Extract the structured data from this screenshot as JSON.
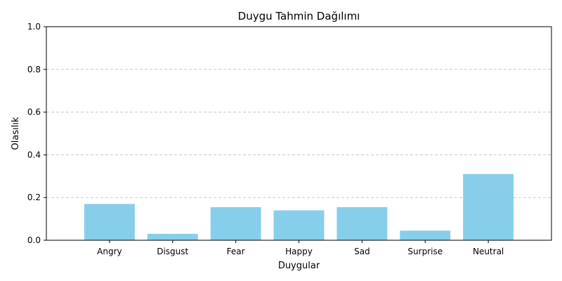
{
  "chart_data": {
    "type": "bar",
    "title": "Duygu Tahmin Dağılımı",
    "xlabel": "Duygular",
    "ylabel": "Olasılık",
    "categories": [
      "Angry",
      "Disgust",
      "Fear",
      "Happy",
      "Sad",
      "Surprise",
      "Neutral"
    ],
    "values": [
      0.17,
      0.03,
      0.155,
      0.14,
      0.155,
      0.045,
      0.31
    ],
    "ylim": [
      0,
      1.0
    ],
    "yticks": [
      "0.0",
      "0.2",
      "0.4",
      "0.6",
      "0.8",
      "1.0"
    ],
    "grid": "y-dashed",
    "bar_color": "#87CEEB",
    "grid_color": "#c8c8c8"
  }
}
